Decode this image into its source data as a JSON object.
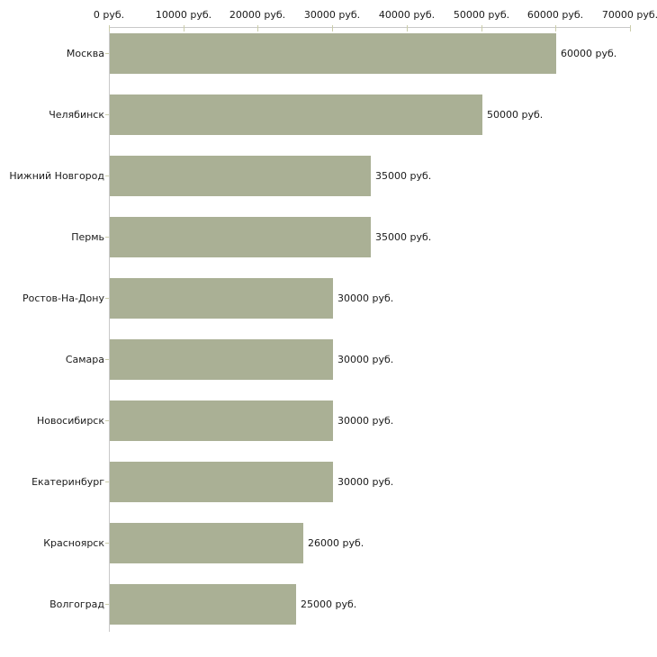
{
  "chart_data": {
    "type": "bar",
    "orientation": "horizontal",
    "title": "",
    "xlabel": "",
    "ylabel": "",
    "grid": false,
    "legend": "none",
    "xlim": [
      0,
      70000
    ],
    "tick_interval": 10000,
    "axis_ticks": [
      "0 руб.",
      "10000 руб.",
      "20000 руб.",
      "30000 руб.",
      "40000 руб.",
      "50000 руб.",
      "60000 руб.",
      "70000 руб."
    ],
    "categories": [
      "Москва",
      "Челябинск",
      "Нижний Новгород",
      "Пермь",
      "Ростов-На-Дону",
      "Самара",
      "Новосибирск",
      "Екатеринбург",
      "Красноярск",
      "Волгоград"
    ],
    "values": [
      60000,
      50000,
      35000,
      35000,
      30000,
      30000,
      30000,
      30000,
      26000,
      25000
    ],
    "value_labels": [
      "60000 руб.",
      "50000 руб.",
      "35000 руб.",
      "35000 руб.",
      "30000 руб.",
      "30000 руб.",
      "30000 руб.",
      "30000 руб.",
      "26000 руб.",
      "25000 руб."
    ],
    "colors": {
      "bar": "#aab095",
      "axis_line": "#c9c9c9",
      "tick_mark": "#cbcdab",
      "text": "#1a1a1a",
      "background": "#ffffff"
    }
  }
}
